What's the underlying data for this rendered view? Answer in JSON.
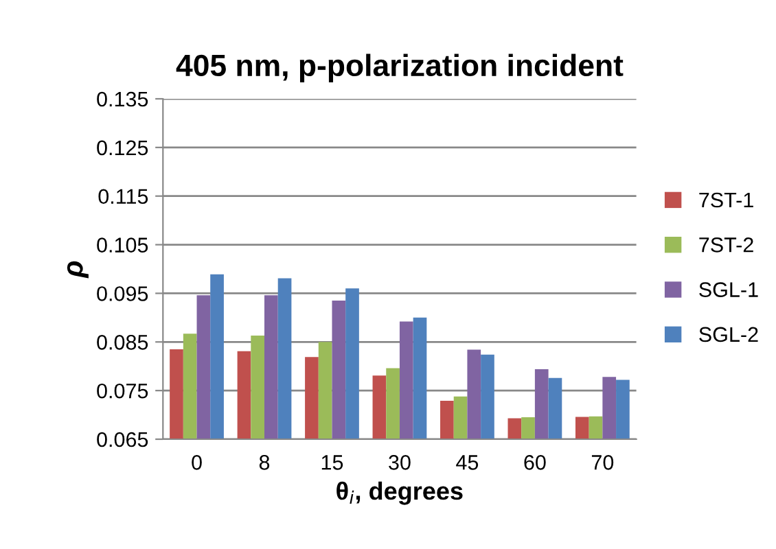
{
  "chart_data": {
    "type": "bar",
    "title": "405 nm, p-polarization incident",
    "xlabel": "θ$_{i}$, degrees",
    "ylabel": "ρ",
    "categories": [
      "0",
      "8",
      "15",
      "30",
      "45",
      "60",
      "70"
    ],
    "series": [
      {
        "name": "7ST-1",
        "color": "#c0504d",
        "values": [
          0.0835,
          0.0831,
          0.0819,
          0.0781,
          0.0729,
          0.0693,
          0.0696
        ]
      },
      {
        "name": "7ST-2",
        "color": "#9bbb59",
        "values": [
          0.0867,
          0.0863,
          0.085,
          0.0796,
          0.0738,
          0.0695,
          0.0697
        ]
      },
      {
        "name": "SGL-1",
        "color": "#8064a2",
        "values": [
          0.0946,
          0.0946,
          0.0935,
          0.0892,
          0.0834,
          0.0794,
          0.0778
        ]
      },
      {
        "name": "SGL-2",
        "color": "#4f81bd",
        "values": [
          0.0989,
          0.0981,
          0.096,
          0.09,
          0.0824,
          0.0776,
          0.0772
        ]
      }
    ],
    "ylim": [
      0.065,
      0.135
    ],
    "yticks": [
      0.065,
      0.075,
      0.085,
      0.095,
      0.105,
      0.115,
      0.125,
      0.135
    ],
    "grid": "y",
    "legend": "right"
  }
}
